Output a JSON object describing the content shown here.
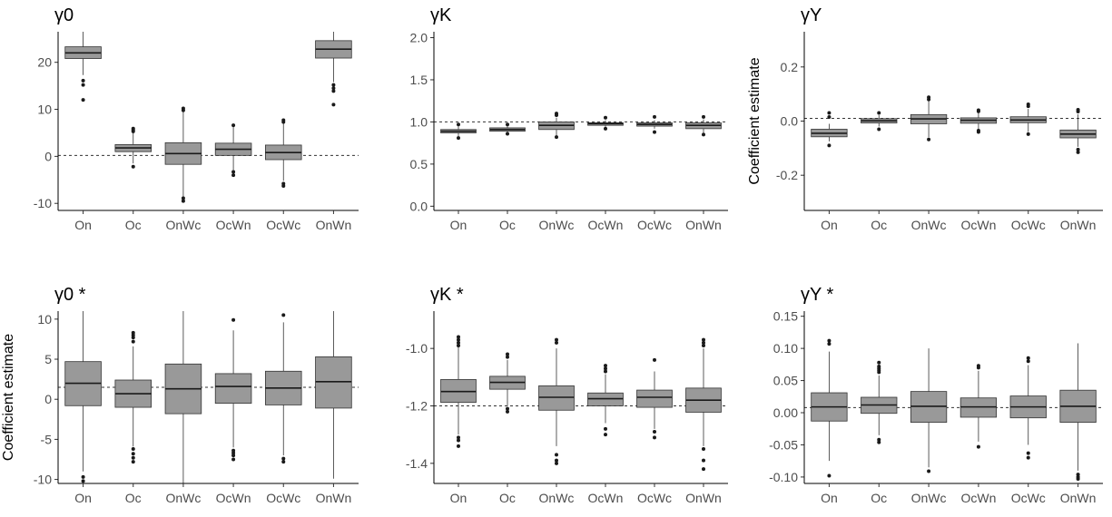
{
  "chart_data": [
    {
      "type": "boxplot",
      "title": "γ0",
      "ylabel": "",
      "ylim": [
        -11.5,
        26.5
      ],
      "yticks": [
        -10,
        0,
        10,
        20
      ],
      "reference_line": 0.2,
      "categories": [
        "On",
        "Oc",
        "OnWc",
        "OcWn",
        "OcWc",
        "OnWn"
      ],
      "boxes": [
        {
          "q1": 20.8,
          "median": 22.0,
          "q3": 23.3,
          "whisker_low": 17.3,
          "whisker_high": 26.5,
          "outliers": [
            16.1,
            15.2,
            12.0
          ]
        },
        {
          "q1": 1.0,
          "median": 1.8,
          "q3": 2.5,
          "whisker_low": -1.5,
          "whisker_high": 5.0,
          "outliers": [
            5.3,
            5.6,
            5.9,
            -2.2
          ]
        },
        {
          "q1": -1.7,
          "median": 0.6,
          "q3": 2.9,
          "whisker_low": -8.5,
          "whisker_high": 9.5,
          "outliers": [
            9.8,
            10.2,
            -8.9,
            -9.5
          ]
        },
        {
          "q1": 0.2,
          "median": 1.5,
          "q3": 2.8,
          "whisker_low": -2.9,
          "whisker_high": 6.4,
          "outliers": [
            6.6,
            -3.3,
            -4.0
          ]
        },
        {
          "q1": -0.7,
          "median": 0.8,
          "q3": 2.4,
          "whisker_low": -5.2,
          "whisker_high": 7.0,
          "outliers": [
            7.3,
            7.7,
            -5.8,
            -6.3
          ]
        },
        {
          "q1": 20.9,
          "median": 22.8,
          "q3": 24.6,
          "whisker_low": 15.8,
          "whisker_high": 26.5,
          "outliers": [
            15.2,
            14.5,
            13.9,
            11.0
          ]
        }
      ]
    },
    {
      "type": "boxplot",
      "title": "γK",
      "ylabel": "",
      "ylim": [
        -0.05,
        2.07
      ],
      "yticks": [
        0.0,
        0.5,
        1.0,
        1.5,
        2.0
      ],
      "ytick_labels": [
        "0.0",
        "0.5",
        "1.0",
        "1.5",
        "2.0"
      ],
      "reference_line": 1.0,
      "categories": [
        "On",
        "Oc",
        "OnWc",
        "OcWn",
        "OcWc",
        "OnWn"
      ],
      "boxes": [
        {
          "q1": 0.87,
          "median": 0.89,
          "q3": 0.91,
          "whisker_low": 0.83,
          "whisker_high": 0.95,
          "outliers": [
            0.97,
            0.81
          ]
        },
        {
          "q1": 0.89,
          "median": 0.91,
          "q3": 0.93,
          "whisker_low": 0.87,
          "whisker_high": 0.95,
          "outliers": [
            0.97,
            0.86
          ]
        },
        {
          "q1": 0.91,
          "median": 0.96,
          "q3": 1.0,
          "whisker_low": 0.84,
          "whisker_high": 1.05,
          "outliers": [
            1.08,
            1.1,
            0.82
          ]
        },
        {
          "q1": 0.96,
          "median": 0.98,
          "q3": 0.99,
          "whisker_low": 0.94,
          "whisker_high": 1.02,
          "outliers": [
            1.05,
            0.92
          ]
        },
        {
          "q1": 0.95,
          "median": 0.97,
          "q3": 0.99,
          "whisker_low": 0.92,
          "whisker_high": 1.02,
          "outliers": [
            1.06,
            0.88
          ]
        },
        {
          "q1": 0.92,
          "median": 0.96,
          "q3": 0.99,
          "whisker_low": 0.87,
          "whisker_high": 1.03,
          "outliers": [
            1.06,
            0.85
          ]
        }
      ]
    },
    {
      "type": "boxplot",
      "title": "γY",
      "ylabel": "Coefficient estimate",
      "ylim": [
        -0.33,
        0.33
      ],
      "yticks": [
        -0.2,
        0.0,
        0.2
      ],
      "ytick_labels": [
        "-0.2",
        "0.0",
        "0.2"
      ],
      "reference_line": 0.01,
      "categories": [
        "On",
        "Oc",
        "OnWc",
        "OcWn",
        "OcWc",
        "OnWn"
      ],
      "boxes": [
        {
          "q1": -0.058,
          "median": -0.045,
          "q3": -0.03,
          "whisker_low": -0.075,
          "whisker_high": -0.01,
          "outliers": [
            0.015,
            0.03,
            -0.09
          ]
        },
        {
          "q1": -0.007,
          "median": 0.001,
          "q3": 0.009,
          "whisker_low": -0.02,
          "whisker_high": 0.022,
          "outliers": [
            0.03,
            -0.03
          ]
        },
        {
          "q1": -0.01,
          "median": 0.008,
          "q3": 0.024,
          "whisker_low": -0.06,
          "whisker_high": 0.075,
          "outliers": [
            0.08,
            0.088,
            -0.068
          ]
        },
        {
          "q1": -0.008,
          "median": 0.003,
          "q3": 0.012,
          "whisker_low": -0.03,
          "whisker_high": 0.032,
          "outliers": [
            0.036,
            0.04,
            -0.035,
            -0.04
          ]
        },
        {
          "q1": -0.006,
          "median": 0.004,
          "q3": 0.016,
          "whisker_low": -0.04,
          "whisker_high": 0.045,
          "outliers": [
            0.055,
            0.062,
            -0.048
          ]
        },
        {
          "q1": -0.062,
          "median": -0.048,
          "q3": -0.033,
          "whisker_low": -0.095,
          "whisker_high": 0.025,
          "outliers": [
            0.035,
            0.042,
            -0.105,
            -0.115
          ]
        }
      ]
    },
    {
      "type": "boxplot",
      "title": "γ0 *",
      "ylabel": "Coefficient estimate",
      "ylim": [
        -10.5,
        11.0
      ],
      "yticks": [
        -10,
        -5,
        0,
        5,
        10
      ],
      "reference_line": 1.5,
      "categories": [
        "On",
        "Oc",
        "OnWc",
        "OcWn",
        "OcWc",
        "OnWn"
      ],
      "boxes": [
        {
          "q1": -0.8,
          "median": 2.0,
          "q3": 4.7,
          "whisker_low": -9.0,
          "whisker_high": 11.0,
          "outliers": [
            -9.7,
            -10.2
          ]
        },
        {
          "q1": -1.0,
          "median": 0.7,
          "q3": 2.4,
          "whisker_low": -5.9,
          "whisker_high": 6.6,
          "outliers": [
            7.2,
            7.7,
            8.0,
            8.3,
            -6.2,
            -6.8,
            -7.3,
            -7.8
          ]
        },
        {
          "q1": -1.8,
          "median": 1.3,
          "q3": 4.4,
          "whisker_low": -10.5,
          "whisker_high": 11.0,
          "outliers": []
        },
        {
          "q1": -0.5,
          "median": 1.6,
          "q3": 3.2,
          "whisker_low": -6.0,
          "whisker_high": 8.6,
          "outliers": [
            9.9,
            -6.4,
            -6.7,
            -7.0,
            -7.5
          ]
        },
        {
          "q1": -0.7,
          "median": 1.4,
          "q3": 3.5,
          "whisker_low": -7.0,
          "whisker_high": 9.6,
          "outliers": [
            10.5,
            -7.4,
            -7.8
          ]
        },
        {
          "q1": -1.1,
          "median": 2.2,
          "q3": 5.3,
          "whisker_low": -9.9,
          "whisker_high": 11.0,
          "outliers": []
        }
      ]
    },
    {
      "type": "boxplot",
      "title": "γK *",
      "ylabel": "",
      "ylim": [
        -1.47,
        -0.87
      ],
      "yticks": [
        -1.4,
        -1.2,
        -1.0
      ],
      "ytick_labels": [
        "-1.4",
        "-1.2",
        "-1.0"
      ],
      "reference_line": -1.2,
      "categories": [
        "On",
        "Oc",
        "OnWc",
        "OcWn",
        "OcWc",
        "OnWn"
      ],
      "boxes": [
        {
          "q1": -1.188,
          "median": -1.15,
          "q3": -1.108,
          "whisker_low": -1.3,
          "whisker_high": -0.99,
          "outliers": [
            -0.96,
            -0.97,
            -0.98,
            -0.99,
            -1.31,
            -1.32,
            -1.34
          ]
        },
        {
          "q1": -1.142,
          "median": -1.118,
          "q3": -1.097,
          "whisker_low": -1.2,
          "whisker_high": -1.04,
          "outliers": [
            -1.02,
            -1.03,
            -1.21,
            -1.22
          ]
        },
        {
          "q1": -1.215,
          "median": -1.17,
          "q3": -1.13,
          "whisker_low": -1.34,
          "whisker_high": -1.0,
          "outliers": [
            -0.97,
            -0.98,
            -1.37,
            -1.39,
            -1.4
          ]
        },
        {
          "q1": -1.2,
          "median": -1.175,
          "q3": -1.155,
          "whisker_low": -1.26,
          "whisker_high": -1.09,
          "outliers": [
            -1.06,
            -1.07,
            -1.08,
            -1.28,
            -1.3
          ]
        },
        {
          "q1": -1.205,
          "median": -1.17,
          "q3": -1.145,
          "whisker_low": -1.28,
          "whisker_high": -1.08,
          "outliers": [
            -1.04,
            -1.29,
            -1.31
          ]
        },
        {
          "q1": -1.222,
          "median": -1.18,
          "q3": -1.138,
          "whisker_low": -1.34,
          "whisker_high": -1.0,
          "outliers": [
            -0.97,
            -0.98,
            -0.99,
            -1.35,
            -1.39,
            -1.42
          ]
        }
      ]
    },
    {
      "type": "boxplot",
      "title": "γY *",
      "ylabel": "",
      "ylim": [
        -0.11,
        0.158
      ],
      "yticks": [
        -0.1,
        -0.05,
        0.0,
        0.05,
        0.1,
        0.15
      ],
      "ytick_labels": [
        "-0.10",
        "-0.05",
        "0.00",
        "0.05",
        "0.10",
        "0.15"
      ],
      "reference_line": 0.008,
      "categories": [
        "On",
        "Oc",
        "OnWc",
        "OcWn",
        "OcWc",
        "OnWn"
      ],
      "boxes": [
        {
          "q1": -0.013,
          "median": 0.009,
          "q3": 0.031,
          "whisker_low": -0.075,
          "whisker_high": 0.095,
          "outliers": [
            0.107,
            0.112,
            -0.098
          ]
        },
        {
          "q1": -0.001,
          "median": 0.012,
          "q3": 0.024,
          "whisker_low": -0.035,
          "whisker_high": 0.058,
          "outliers": [
            0.063,
            0.066,
            0.069,
            0.072,
            0.078,
            -0.042,
            -0.046
          ]
        },
        {
          "q1": -0.015,
          "median": 0.01,
          "q3": 0.033,
          "whisker_low": -0.085,
          "whisker_high": 0.1,
          "outliers": [
            -0.091
          ]
        },
        {
          "q1": -0.007,
          "median": 0.009,
          "q3": 0.023,
          "whisker_low": -0.045,
          "whisker_high": 0.065,
          "outliers": [
            0.07,
            0.073,
            -0.053
          ]
        },
        {
          "q1": -0.008,
          "median": 0.009,
          "q3": 0.026,
          "whisker_low": -0.05,
          "whisker_high": 0.074,
          "outliers": [
            0.08,
            0.085,
            -0.063,
            -0.07
          ]
        },
        {
          "q1": -0.015,
          "median": 0.01,
          "q3": 0.035,
          "whisker_low": -0.09,
          "whisker_high": 0.108,
          "outliers": [
            -0.096,
            -0.1,
            -0.103
          ]
        }
      ]
    }
  ]
}
